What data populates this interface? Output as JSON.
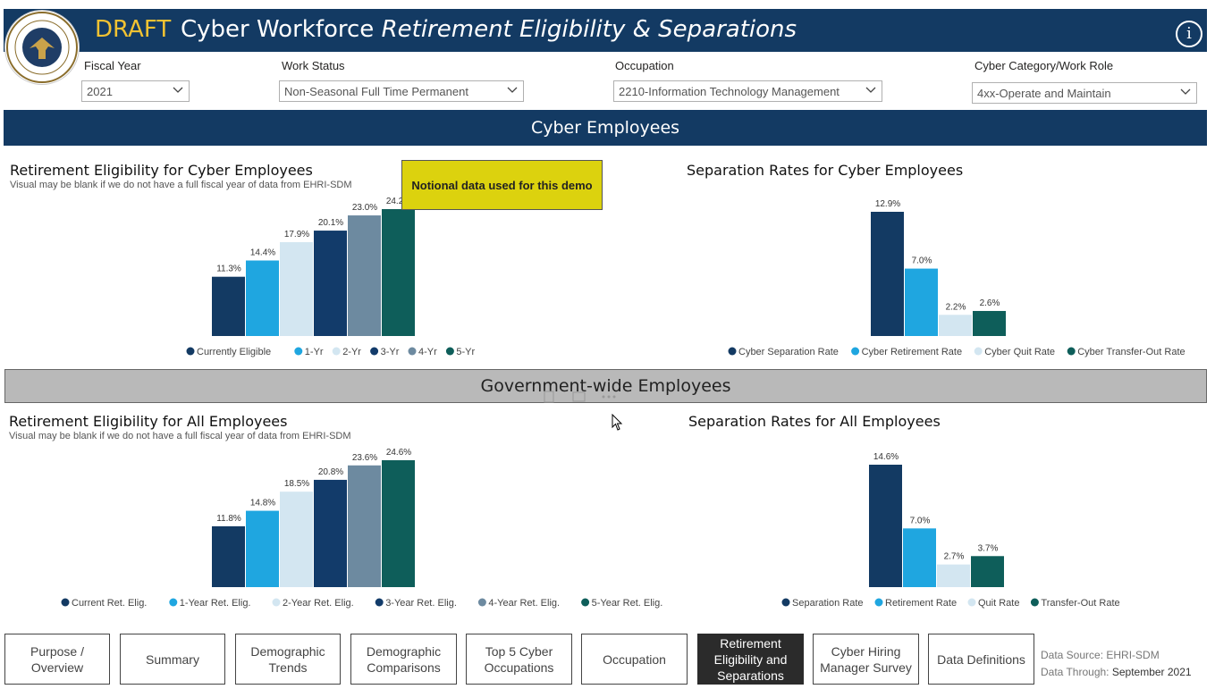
{
  "header": {
    "draft": "DRAFT",
    "title_main": "Cyber Workforce",
    "title_sub": "Retirement Eligibility & Separations",
    "info_symbol": "i",
    "bg_color": "#133a63"
  },
  "filters": [
    {
      "label": "Fiscal Year",
      "value": "2021"
    },
    {
      "label": "Work Status",
      "value": "Non-Seasonal Full Time Permanent"
    },
    {
      "label": "Occupation",
      "value": "2210-Information Technology Management"
    },
    {
      "label": "Cyber Category/Work Role",
      "value": "4xx-Operate and Maintain"
    }
  ],
  "sections": {
    "cyber": "Cyber Employees",
    "gov": "Government-wide Employees"
  },
  "notional": "Notional data used for this demo",
  "charts_text": {
    "ret_cyber_title": "Retirement Eligibility for Cyber Employees",
    "ret_cyber_sub": "Visual may be blank if we do not have a full fiscal year of data from EHRI-SDM",
    "sep_cyber_title": "Separation Rates for Cyber Employees",
    "ret_all_title": "Retirement Eligibility for All Employees",
    "ret_all_sub": "Visual may be blank if we do not have a full fiscal year of data from EHRI-SDM",
    "sep_all_title": "Separation Rates for All Employees"
  },
  "colors": [
    "#133a63",
    "#1fa6e0",
    "#d3e6f1",
    "#123b6a",
    "#6d8aa0",
    "#0e5e5a"
  ],
  "chart_data": [
    {
      "id": "ret_cyber",
      "type": "bar",
      "categories": [
        "Currently Eligible",
        "1-Yr",
        "2-Yr",
        "3-Yr",
        "4-Yr",
        "5-Yr"
      ],
      "values": [
        11.3,
        14.4,
        17.9,
        20.1,
        23.0,
        24.2
      ],
      "labels": [
        "11.3%",
        "14.4%",
        "17.9%",
        "20.1%",
        "23.0%",
        "24.2%"
      ],
      "legend": [
        "Currently Eligible",
        "1-Yr",
        "2-Yr",
        "3-Yr",
        "4-Yr",
        "5-Yr"
      ],
      "ylim": [
        0,
        25
      ]
    },
    {
      "id": "sep_cyber",
      "type": "bar",
      "categories": [
        "Cyber Separation Rate",
        "Cyber Retirement Rate",
        "Cyber Quit Rate",
        "Cyber Transfer-Out Rate"
      ],
      "values": [
        12.9,
        7.0,
        2.2,
        2.6
      ],
      "labels": [
        "12.9%",
        "7.0%",
        "2.2%",
        "2.6%"
      ],
      "legend": [
        "Cyber Separation Rate",
        "Cyber Retirement Rate",
        "Cyber Quit Rate",
        "Cyber Transfer-Out Rate"
      ],
      "ylim": [
        0,
        13
      ]
    },
    {
      "id": "ret_all",
      "type": "bar",
      "categories": [
        "Current Ret. Elig.",
        "1-Year Ret. Elig.",
        "2-Year Ret. Elig.",
        "3-Year Ret. Elig.",
        "4-Year Ret. Elig.",
        "5-Year Ret. Elig."
      ],
      "values": [
        11.8,
        14.8,
        18.5,
        20.8,
        23.6,
        24.6
      ],
      "labels": [
        "11.8%",
        "14.8%",
        "18.5%",
        "20.8%",
        "23.6%",
        "24.6%"
      ],
      "legend": [
        "Current Ret. Elig.",
        "1-Year Ret. Elig.",
        "2-Year Ret. Elig.",
        "3-Year Ret. Elig.",
        "4-Year Ret. Elig.",
        "5-Year Ret. Elig."
      ],
      "ylim": [
        0,
        25
      ]
    },
    {
      "id": "sep_all",
      "type": "bar",
      "categories": [
        "Separation Rate",
        "Retirement Rate",
        "Quit Rate",
        "Transfer-Out Rate"
      ],
      "values": [
        14.6,
        7.0,
        2.7,
        3.7
      ],
      "labels": [
        "14.6%",
        "7.0%",
        "2.7%",
        "3.7%"
      ],
      "legend": [
        "Separation Rate",
        "Retirement Rate",
        "Quit Rate",
        "Transfer-Out Rate"
      ],
      "ylim": [
        0,
        14.6
      ]
    }
  ],
  "nav": [
    {
      "label": "Purpose / Overview",
      "active": false
    },
    {
      "label": "Summary",
      "active": false
    },
    {
      "label": "Demographic Trends",
      "active": false
    },
    {
      "label": "Demographic Comparisons",
      "active": false
    },
    {
      "label": "Top 5 Cyber Occupations",
      "active": false
    },
    {
      "label": "Occupation",
      "active": false
    },
    {
      "label": "Retirement Eligibility and Separations",
      "active": true
    },
    {
      "label": "Cyber Hiring Manager Survey",
      "active": false
    },
    {
      "label": "Data Definitions",
      "active": false
    }
  ],
  "footer": {
    "source": "Data Source: EHRI-SDM",
    "through_label": "Data Through:",
    "through_value": "September 2021"
  }
}
